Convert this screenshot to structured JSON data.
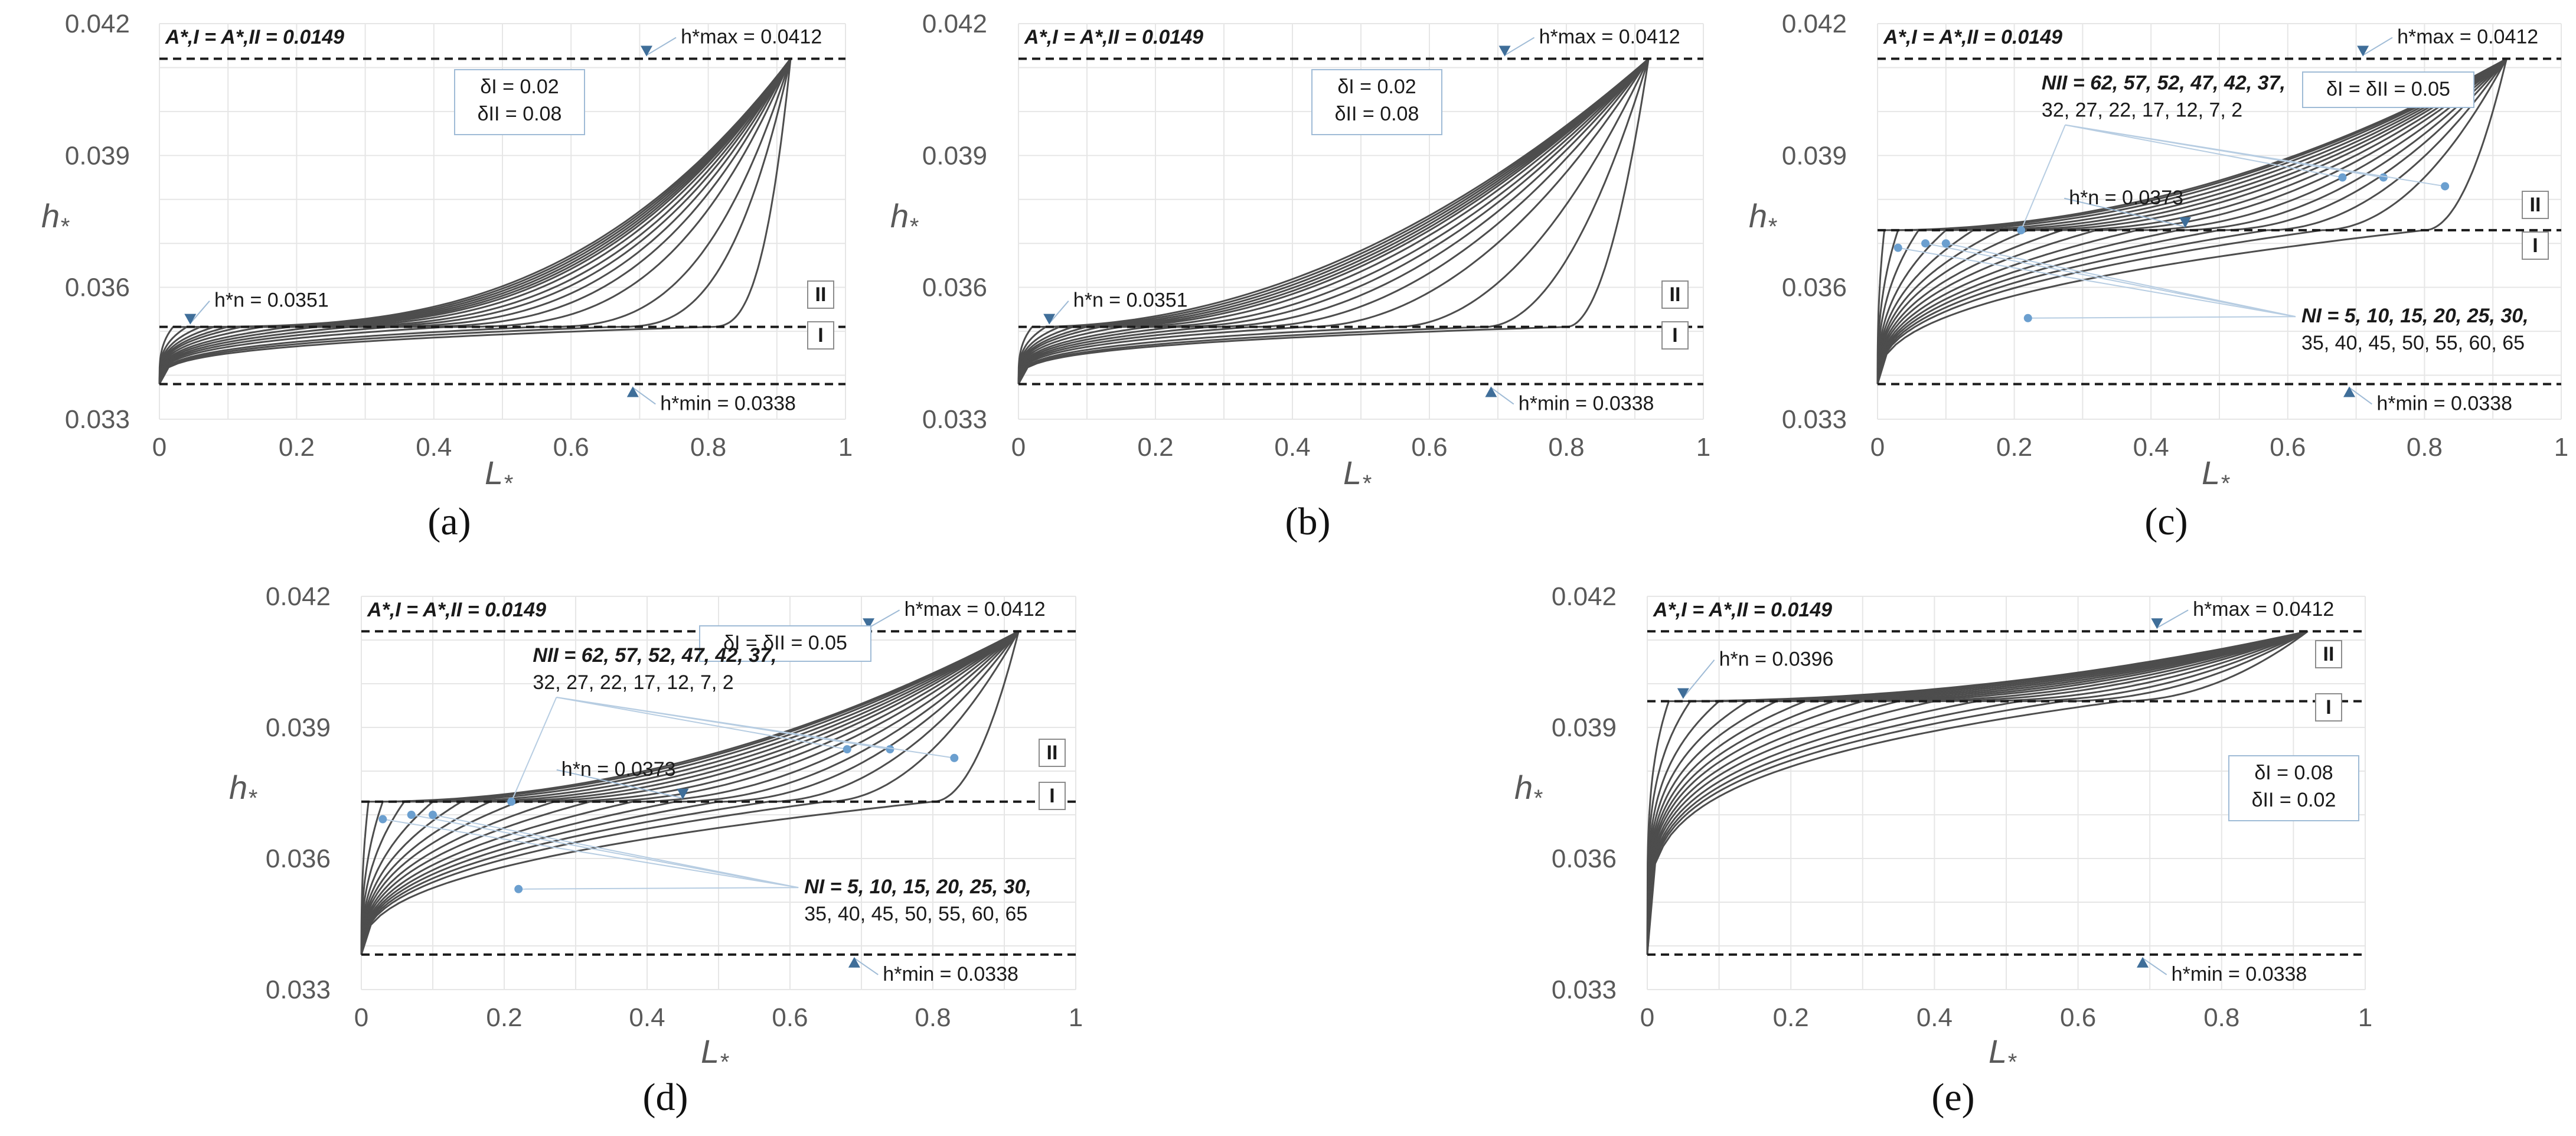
{
  "chart_data": [
    {
      "id": "a",
      "type": "line",
      "panel_label": "(a)",
      "xlabel": "L*",
      "ylabel": "h*",
      "xlim": [
        0,
        1
      ],
      "ylim": [
        0.033,
        0.042
      ],
      "x_ticks": [
        "0",
        "0.2",
        "0.4",
        "0.6",
        "0.8",
        "1"
      ],
      "y_ticks": [
        "0.033",
        "0.036",
        "0.039",
        "0.042"
      ],
      "grid": true,
      "reference_lines": [
        {
          "name": "h_max",
          "value": 0.0412,
          "label": "h*max = 0.0412"
        },
        {
          "name": "h_n",
          "value": 0.0351,
          "label": "h*n = 0.0351"
        },
        {
          "name": "h_min",
          "value": 0.0338,
          "label": "h*min = 0.0338"
        }
      ],
      "area_label": "A*,I = A*,II = 0.0149",
      "region_labels": [
        "II",
        "I"
      ],
      "delta_box": [
        "δI = 0.02",
        "δII = 0.08"
      ],
      "h_min": 0.0338,
      "h_n": 0.0351,
      "h_max": 0.0412,
      "x_end": 0.92,
      "region_I_exponent": 0.3,
      "region_II_exponent": 3.0,
      "curve_transition_L": [
        0.02,
        0.04,
        0.06,
        0.08,
        0.1,
        0.12,
        0.15,
        0.19,
        0.23,
        0.28,
        0.34,
        0.42,
        0.55,
        0.66,
        0.8
      ]
    },
    {
      "id": "b",
      "type": "line",
      "panel_label": "(b)",
      "xlabel": "L*",
      "ylabel": "h*",
      "xlim": [
        0,
        1
      ],
      "ylim": [
        0.033,
        0.042
      ],
      "x_ticks": [
        "0",
        "0.2",
        "0.4",
        "0.6",
        "0.8",
        "1"
      ],
      "y_ticks": [
        "0.033",
        "0.036",
        "0.039",
        "0.042"
      ],
      "grid": true,
      "reference_lines": [
        {
          "name": "h_max",
          "value": 0.0412,
          "label": "h*max = 0.0412"
        },
        {
          "name": "h_n",
          "value": 0.0351,
          "label": "h*n = 0.0351"
        },
        {
          "name": "h_min",
          "value": 0.0338,
          "label": "h*min = 0.0338"
        }
      ],
      "area_label": "A*,I = A*,II = 0.0149",
      "region_labels": [
        "II",
        "I"
      ],
      "delta_box": [
        "δI = 0.02",
        "δII = 0.08"
      ],
      "h_min": 0.0338,
      "h_n": 0.0351,
      "h_max": 0.0412,
      "x_end": 0.92,
      "region_I_exponent": 0.3,
      "region_II_exponent": 2.0,
      "curve_transition_L": [
        0.02,
        0.04,
        0.06,
        0.08,
        0.1,
        0.12,
        0.15,
        0.19,
        0.23,
        0.28,
        0.34,
        0.42,
        0.55,
        0.68,
        0.8
      ]
    },
    {
      "id": "c",
      "type": "line",
      "panel_label": "(c)",
      "xlabel": "L*",
      "ylabel": "h*",
      "xlim": [
        0,
        1
      ],
      "ylim": [
        0.033,
        0.042
      ],
      "x_ticks": [
        "0",
        "0.2",
        "0.4",
        "0.6",
        "0.8",
        "1"
      ],
      "y_ticks": [
        "0.033",
        "0.036",
        "0.039",
        "0.042"
      ],
      "grid": true,
      "reference_lines": [
        {
          "name": "h_max",
          "value": 0.0412,
          "label": "h*max = 0.0412"
        },
        {
          "name": "h_n",
          "value": 0.0373,
          "label": "h*n = 0.0373"
        },
        {
          "name": "h_min",
          "value": 0.0338,
          "label": "h*min = 0.0338"
        }
      ],
      "area_label": "A*,I = A*,II = 0.0149",
      "region_labels": [
        "II",
        "I"
      ],
      "delta_box": [
        "δI = δII = 0.05"
      ],
      "n_II_label": [
        "NII = 62, 57, 52, 47, 42, 37,",
        "32, 27, 22, 17, 12, 7, 2"
      ],
      "n_I_label": [
        "NI = 5, 10, 15, 20, 25, 30,",
        "35, 40, 45, 50, 55, 60, 65"
      ],
      "h_min": 0.0338,
      "h_n": 0.0373,
      "h_max": 0.0412,
      "x_end": 0.92,
      "region_I_exponent": 0.4,
      "region_II_exponent": 2.0,
      "curve_transition_L": [
        0.01,
        0.03,
        0.06,
        0.1,
        0.14,
        0.18,
        0.22,
        0.27,
        0.32,
        0.38,
        0.44,
        0.5,
        0.57,
        0.65,
        0.8
      ]
    },
    {
      "id": "d",
      "type": "line",
      "panel_label": "(d)",
      "xlabel": "L*",
      "ylabel": "h*",
      "xlim": [
        0,
        1
      ],
      "ylim": [
        0.033,
        0.042
      ],
      "x_ticks": [
        "0",
        "0.2",
        "0.4",
        "0.6",
        "0.8",
        "1"
      ],
      "y_ticks": [
        "0.033",
        "0.036",
        "0.039",
        "0.042"
      ],
      "grid": true,
      "reference_lines": [
        {
          "name": "h_max",
          "value": 0.0412,
          "label": "h*max = 0.0412"
        },
        {
          "name": "h_n",
          "value": 0.0373,
          "label": "h*n = 0.0373"
        },
        {
          "name": "h_min",
          "value": 0.0338,
          "label": "h*min = 0.0338"
        }
      ],
      "area_label": "A*,I = A*,II = 0.0149",
      "region_labels": [
        "II",
        "I"
      ],
      "delta_box": [
        "δI = δII = 0.05"
      ],
      "n_II_label": [
        "NII = 62, 57, 52, 47, 42, 37,",
        "32, 27, 22, 17, 12, 7, 2"
      ],
      "n_I_label": [
        "NI = 5, 10, 15, 20, 25, 30,",
        "35, 40, 45, 50, 55, 60, 65"
      ],
      "h_min": 0.0338,
      "h_n": 0.0373,
      "h_max": 0.0412,
      "x_end": 0.92,
      "region_I_exponent": 0.4,
      "region_II_exponent": 2.0,
      "curve_transition_L": [
        0.01,
        0.03,
        0.06,
        0.1,
        0.14,
        0.18,
        0.22,
        0.27,
        0.32,
        0.38,
        0.44,
        0.5,
        0.57,
        0.65,
        0.8
      ]
    },
    {
      "id": "e",
      "type": "line",
      "panel_label": "(e)",
      "xlabel": "L*",
      "ylabel": "h*",
      "xlim": [
        0,
        1
      ],
      "ylim": [
        0.033,
        0.042
      ],
      "x_ticks": [
        "0",
        "0.2",
        "0.4",
        "0.6",
        "0.8",
        "1"
      ],
      "y_ticks": [
        "0.033",
        "0.036",
        "0.039",
        "0.042"
      ],
      "grid": true,
      "reference_lines": [
        {
          "name": "h_max",
          "value": 0.0412,
          "label": "h*max = 0.0412"
        },
        {
          "name": "h_n",
          "value": 0.0396,
          "label": "h*n = 0.0396"
        },
        {
          "name": "h_min",
          "value": 0.0338,
          "label": "h*min = 0.0338"
        }
      ],
      "area_label": "A*,I = A*,II = 0.0149",
      "region_labels": [
        "II",
        "I"
      ],
      "delta_box": [
        "δI = 0.08",
        "δII = 0.02"
      ],
      "h_min": 0.0338,
      "h_n": 0.0396,
      "h_max": 0.0412,
      "x_end": 0.92,
      "region_I_exponent": 0.25,
      "region_II_exponent": 2.0,
      "curve_transition_L": [
        0.03,
        0.06,
        0.1,
        0.14,
        0.18,
        0.22,
        0.26,
        0.3,
        0.35,
        0.4,
        0.46,
        0.52,
        0.58,
        0.66
      ]
    }
  ]
}
